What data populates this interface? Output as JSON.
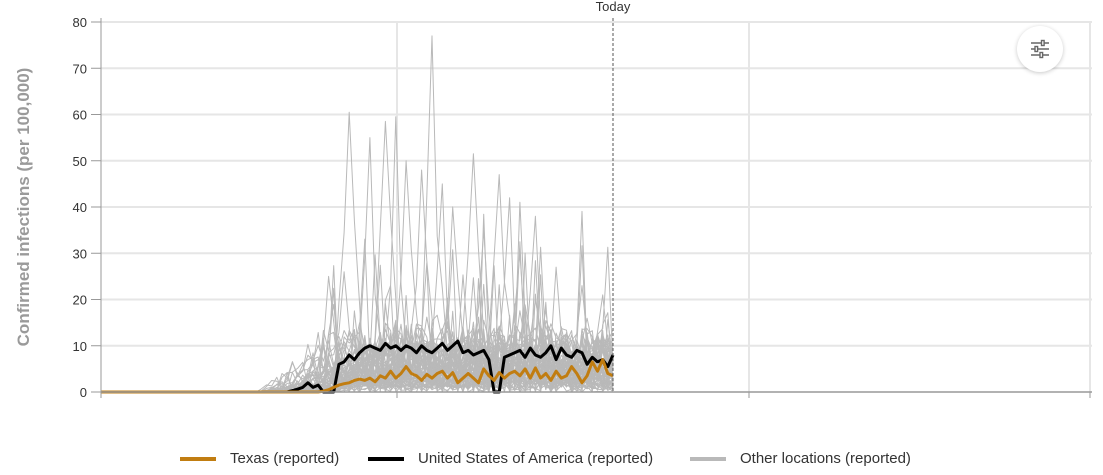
{
  "colors": {
    "texas": "#c17d11",
    "usa": "#000000",
    "other": "#b9b9b9",
    "grid": "#e6e6e6",
    "axis": "#999999",
    "today_line": "#555555"
  },
  "settings_button": {
    "icon": "sliders-icon"
  },
  "legend": {
    "texas": "Texas (reported)",
    "usa": "United States of America (reported)",
    "other": "Other locations (reported)"
  },
  "chart_data": {
    "type": "line",
    "title": "",
    "ylabel": "Confirmed infections (per 100,000)",
    "xlabel": "",
    "ylim": [
      0,
      80
    ],
    "yticks": [
      0,
      10,
      20,
      30,
      40,
      50,
      60,
      70,
      80
    ],
    "grid": true,
    "legend_position": "bottom",
    "today_label": "Today",
    "x_index_range": [
      0,
      99
    ],
    "today_index": 99,
    "series": [
      {
        "name": "Texas (reported)",
        "color": "#c17d11",
        "values": [
          0,
          0,
          0,
          0,
          0,
          0,
          0,
          0,
          0,
          0,
          0,
          0,
          0,
          0,
          0,
          0,
          0,
          0,
          0,
          0,
          0,
          0,
          0,
          0,
          0,
          0,
          0,
          0,
          0,
          0,
          0,
          0,
          0,
          0,
          0,
          0,
          0,
          0,
          0,
          0,
          0,
          0,
          0,
          0.2,
          0.5,
          1,
          1.5,
          1.8,
          2,
          2.5,
          2.8,
          2.5,
          3,
          2.2,
          3.5,
          3,
          4.5,
          3,
          4,
          5.5,
          4,
          3.5,
          2.5,
          3.8,
          3,
          4,
          4.5,
          3,
          4.2,
          2,
          3,
          4,
          3,
          2,
          5,
          3.5,
          2.5,
          4.2,
          3,
          4,
          4.5,
          3.5,
          5,
          3,
          5.2,
          3,
          4,
          2.5,
          4.5,
          3,
          3.5,
          5.5,
          4,
          2,
          3.5,
          6.5,
          4.5,
          7,
          4,
          3.5
        ]
      },
      {
        "name": "United States of America (reported)",
        "color": "#000000",
        "values": [
          0,
          0,
          0,
          0,
          0,
          0,
          0,
          0,
          0,
          0,
          0,
          0,
          0,
          0,
          0,
          0,
          0,
          0,
          0,
          0,
          0,
          0,
          0,
          0,
          0,
          0,
          0,
          0,
          0,
          0,
          0,
          0,
          0,
          0,
          0,
          0,
          0,
          0.3,
          0.6,
          1,
          2,
          1,
          1.5,
          0,
          0,
          0,
          6,
          6.5,
          8,
          7,
          8.5,
          9.5,
          10,
          9.5,
          9,
          10.5,
          9.5,
          10,
          9,
          10,
          9.5,
          8.5,
          10,
          9,
          8.5,
          9.5,
          10.5,
          9,
          10,
          11,
          8.5,
          9,
          8,
          8.5,
          9,
          7,
          0,
          0,
          7.5,
          8,
          8.5,
          9,
          7.5,
          9.5,
          8,
          7.5,
          8.5,
          10,
          7,
          9.5,
          8,
          7.5,
          9,
          8.5,
          6,
          7.5,
          6.5,
          7,
          5.5,
          8
        ]
      }
    ],
    "other_locations": {
      "name": "Other locations (reported)",
      "color": "#b9b9b9",
      "series_count": 60,
      "start_index": 30,
      "typical_max": 10,
      "spikes": [
        {
          "series": 0,
          "index": 48,
          "value": 60.5
        },
        {
          "series": 1,
          "index": 47,
          "value": 26
        },
        {
          "series": 2,
          "index": 55,
          "value": 58.5
        },
        {
          "series": 3,
          "index": 57,
          "value": 59.5
        },
        {
          "series": 4,
          "index": 64,
          "value": 77
        },
        {
          "series": 5,
          "index": 59,
          "value": 50
        },
        {
          "series": 6,
          "index": 62,
          "value": 48
        },
        {
          "series": 7,
          "index": 72,
          "value": 51.5
        },
        {
          "series": 8,
          "index": 77,
          "value": 47
        },
        {
          "series": 9,
          "index": 66,
          "value": 45
        },
        {
          "series": 10,
          "index": 79,
          "value": 42
        },
        {
          "series": 11,
          "index": 84,
          "value": 38
        },
        {
          "series": 12,
          "index": 88,
          "value": 27
        },
        {
          "series": 13,
          "index": 93,
          "value": 23
        },
        {
          "series": 14,
          "index": 97,
          "value": 21
        },
        {
          "series": 15,
          "index": 52,
          "value": 55
        },
        {
          "series": 16,
          "index": 68,
          "value": 40
        },
        {
          "series": 17,
          "index": 74,
          "value": 35
        },
        {
          "series": 18,
          "index": 44,
          "value": 25
        },
        {
          "series": 19,
          "index": 81,
          "value": 30
        }
      ]
    }
  }
}
